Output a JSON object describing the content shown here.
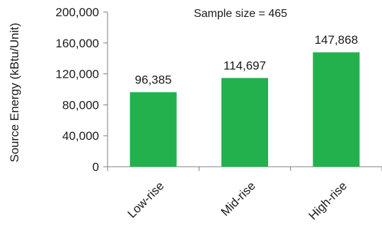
{
  "chart_data": {
    "type": "bar",
    "categories": [
      "Low-rise",
      "Mid-rise",
      "High-rise"
    ],
    "values": [
      96385,
      114697,
      147868
    ],
    "data_labels": [
      "96,385",
      "114,697",
      "147,868"
    ],
    "ylabel": "Source Energy (kBtu/Unit)",
    "annotation": "Sample size = 465",
    "ylim": [
      0,
      200000
    ],
    "yticks": [
      0,
      40000,
      80000,
      120000,
      160000,
      200000
    ],
    "ytick_labels": [
      "0",
      "40,000",
      "80,000",
      "120,000",
      "160,000",
      "200,000"
    ],
    "grid": false,
    "bar_color": "#22b14c"
  }
}
